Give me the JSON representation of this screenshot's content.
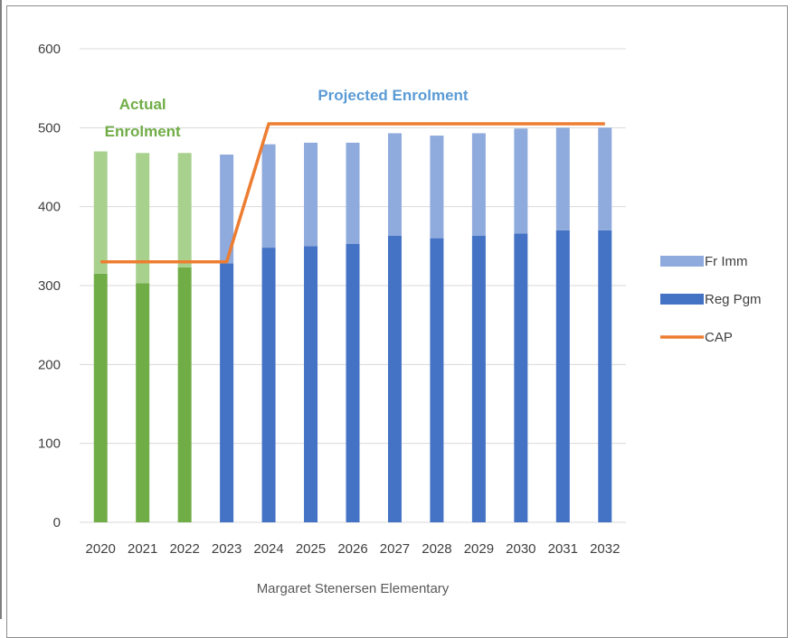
{
  "chart_data": {
    "type": "bar",
    "stacked": true,
    "categories": [
      "2020",
      "2021",
      "2022",
      "2023",
      "2024",
      "2025",
      "2026",
      "2027",
      "2028",
      "2029",
      "2030",
      "2031",
      "2032"
    ],
    "series": [
      {
        "name": "Reg Pgm",
        "kind": "bar",
        "color": "#4472c4",
        "actual_color": "#70ad47",
        "values": [
          315,
          303,
          323,
          328,
          348,
          350,
          353,
          363,
          360,
          363,
          366,
          370,
          370
        ]
      },
      {
        "name": "Fr Imm",
        "kind": "bar",
        "color": "#8faadc",
        "actual_color": "#a9d18e",
        "values": [
          155,
          165,
          145,
          138,
          131,
          131,
          128,
          130,
          130,
          130,
          133,
          130,
          130
        ]
      },
      {
        "name": "CAP",
        "kind": "line",
        "color": "#ed7d31",
        "values": [
          330,
          330,
          330,
          330,
          505,
          505,
          505,
          505,
          505,
          505,
          505,
          505,
          505
        ]
      }
    ],
    "actual_count": 3,
    "ylim": [
      0,
      600
    ],
    "yticks": [
      "0",
      "100",
      "200",
      "300",
      "400",
      "500",
      "600"
    ],
    "gridlines": true,
    "xlabel": "Margaret Stenersen Elementary",
    "ylabel": "",
    "legend_position": "right",
    "legend": [
      {
        "label": "Fr Imm",
        "symbol": "bar",
        "color": "#8faadc"
      },
      {
        "label": "Reg Pgm",
        "symbol": "bar",
        "color": "#4472c4"
      },
      {
        "label": "CAP",
        "symbol": "line",
        "color": "#ed7d31"
      }
    ],
    "annotations": [
      {
        "lines": [
          "Actual",
          "Enrolment"
        ],
        "color": "#70ad47"
      },
      {
        "lines": [
          "Projected Enrolment"
        ],
        "color": "#5b9bd5"
      }
    ]
  }
}
